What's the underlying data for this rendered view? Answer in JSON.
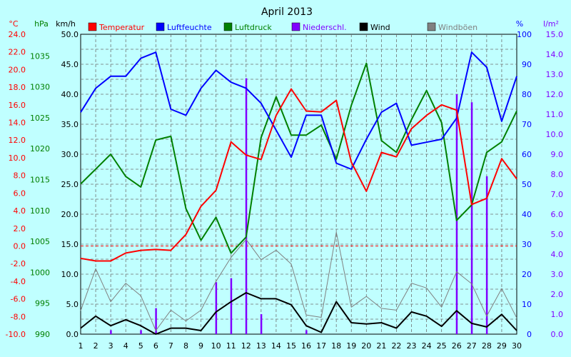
{
  "chart_data": {
    "type": "line",
    "title": "April 2013",
    "x": [
      1,
      2,
      3,
      4,
      5,
      6,
      7,
      8,
      9,
      10,
      11,
      12,
      13,
      14,
      15,
      16,
      17,
      18,
      19,
      20,
      21,
      22,
      23,
      24,
      25,
      26,
      27,
      28,
      29,
      30
    ],
    "axes": {
      "temp": {
        "unit": "°C",
        "color": "#ff0000",
        "range": [
          -10,
          24
        ],
        "ticks": [
          "24.0",
          "22.0",
          "20.0",
          "18.0",
          "16.0",
          "14.0",
          "12.0",
          "10.0",
          "8.0",
          "6.0",
          "4.0",
          "2.0",
          "0.0",
          "-2.0",
          "-4.0",
          "-6.0",
          "-8.0",
          "-10.0"
        ]
      },
      "pressure": {
        "unit": "hPa",
        "color": "#008000",
        "range": [
          990,
          1038.5
        ],
        "ticks": [
          "1035",
          "1030",
          "1025",
          "1020",
          "1015",
          "1010",
          "1005",
          "1000",
          "995",
          "990"
        ]
      },
      "wind": {
        "unit": "km/h",
        "color": "#000000",
        "range": [
          0,
          50
        ],
        "ticks": [
          "50.0",
          "45.0",
          "40.0",
          "35.0",
          "30.0",
          "25.0",
          "20.0",
          "15.0",
          "10.0",
          "5.0",
          "0.0"
        ]
      },
      "humidity": {
        "unit": "%",
        "color": "#0000ff",
        "range": [
          0,
          100
        ],
        "ticks": [
          "100",
          "90",
          "80",
          "70",
          "60",
          "50",
          "40",
          "30",
          "20",
          "10",
          "0"
        ]
      },
      "rain": {
        "unit": "l/m²",
        "color": "#8000ff",
        "range": [
          0,
          15
        ],
        "ticks": [
          "15.0",
          "14.0",
          "13.0",
          "12.0",
          "11.0",
          "10.0",
          "9.0",
          "8.0",
          "7.0",
          "6.0",
          "5.0",
          "4.0",
          "3.0",
          "2.0",
          "1.0",
          "0.0"
        ]
      }
    },
    "series": [
      {
        "name": "Temperatur",
        "color": "#ff0000",
        "axis": "temp",
        "values": [
          -1.4,
          -1.7,
          -1.7,
          -0.8,
          -0.5,
          -0.4,
          -0.5,
          1.3,
          4.5,
          6.3,
          11.8,
          10.3,
          9.8,
          14.8,
          17.8,
          15.3,
          15.2,
          16.5,
          9.5,
          6.2,
          10.6,
          10.1,
          13.3,
          14.8,
          16.0,
          15.4,
          4.7,
          5.4,
          9.9,
          7.6
        ]
      },
      {
        "name": "Luftfeuchte",
        "color": "#0000ff",
        "axis": "humidity",
        "values": [
          74,
          82,
          86,
          86,
          92,
          94,
          75,
          73,
          82,
          88,
          84,
          82,
          77,
          68,
          59,
          73,
          73,
          57,
          55,
          65,
          74,
          77,
          63,
          64,
          65,
          72,
          94,
          89,
          71,
          86
        ]
      },
      {
        "name": "Luftdruck",
        "color": "#008000",
        "axis": "pressure",
        "values": [
          1014.3,
          1016.7,
          1019.1,
          1015.5,
          1013.8,
          1021.4,
          1022.0,
          1010.3,
          1005.2,
          1008.9,
          1003.1,
          1005.7,
          1021.8,
          1028.4,
          1022.2,
          1022.2,
          1023.8,
          1018.3,
          1027.0,
          1033.8,
          1021.3,
          1019.4,
          1024.7,
          1029.4,
          1024.2,
          1008.4,
          1010.9,
          1019.4,
          1021.1,
          1026.1
        ]
      },
      {
        "name": "Niederschl.",
        "color": "#8000ff",
        "axis": "rain",
        "kind": "bar",
        "values": [
          0,
          0,
          0.2,
          0,
          0.2,
          1.3,
          0,
          0,
          0,
          2.6,
          2.8,
          12.8,
          1.0,
          0,
          0,
          0.2,
          0,
          0,
          0,
          0,
          0,
          0,
          0,
          0,
          0,
          12.0,
          11.6,
          7.9,
          0,
          0
        ]
      },
      {
        "name": "Wind",
        "color": "#000000",
        "axis": "wind",
        "values": [
          1.0,
          3.0,
          1.4,
          2.4,
          1.4,
          0,
          1.0,
          1.0,
          0.6,
          3.7,
          5.4,
          6.9,
          5.9,
          5.9,
          4.9,
          1.4,
          0.3,
          5.4,
          1.9,
          1.7,
          1.9,
          1.0,
          3.7,
          3.0,
          1.3,
          3.9,
          1.8,
          1.2,
          3.3,
          0.6
        ]
      },
      {
        "name": "Windböen",
        "color": "#808080",
        "axis": "wind",
        "values": [
          3.9,
          10.9,
          5.4,
          8.5,
          6.4,
          0.6,
          4.0,
          2.2,
          4.0,
          8.8,
          12.8,
          15.8,
          12.4,
          14.0,
          11.7,
          3.2,
          2.8,
          17.0,
          4.5,
          6.3,
          4.3,
          4.0,
          8.5,
          7.7,
          4.5,
          10.4,
          8.4,
          3.0,
          7.6,
          2.7
        ]
      }
    ],
    "xlabel": "",
    "ylabel": "",
    "grid": true,
    "legend": "top"
  }
}
